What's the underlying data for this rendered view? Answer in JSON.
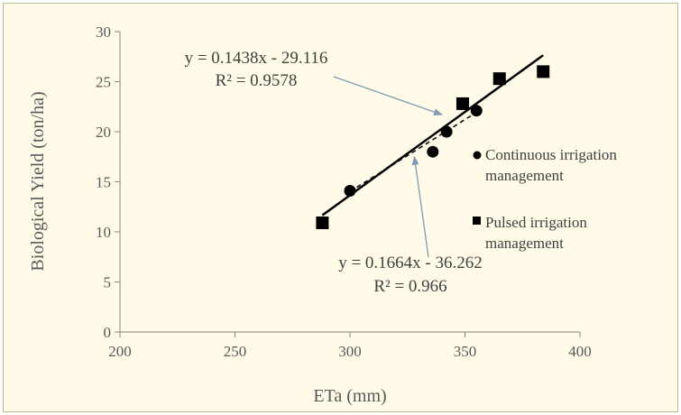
{
  "chart_data": {
    "type": "scatter",
    "xlabel": "ETa (mm)",
    "ylabel": "Biological  Yield (ton/ha)",
    "xlim": [
      200,
      400
    ],
    "ylim": [
      0,
      30
    ],
    "xticks": [
      200,
      250,
      300,
      350,
      400
    ],
    "yticks": [
      0,
      5,
      10,
      15,
      20,
      25,
      30
    ],
    "grid": false,
    "legend_position": "right",
    "series": [
      {
        "name": "Continuous irrigation management",
        "marker": "circle",
        "color": "#000000",
        "x": [
          300,
          336,
          342,
          355
        ],
        "y": [
          14.1,
          18.0,
          20.0,
          22.1
        ],
        "trendline": {
          "equation": "y = 0.1438x - 29.116",
          "r2": "R² = 0.9578",
          "slope": 0.1438,
          "intercept": -29.116,
          "style": "dashed"
        }
      },
      {
        "name": "Pulsed irrigation management",
        "marker": "square",
        "color": "#000000",
        "x": [
          288,
          349,
          365,
          384
        ],
        "y": [
          10.9,
          22.8,
          25.3,
          26.0
        ],
        "trendline": {
          "equation": "y = 0.1664x - 36.262",
          "r2": "R² = 0.966",
          "slope": 0.1664,
          "intercept": -36.262,
          "style": "solid"
        }
      }
    ],
    "annotations": [
      {
        "text_series": 0,
        "arrow_target": [
          340,
          21.7
        ]
      },
      {
        "text_series": 1,
        "arrow_target": [
          328,
          17.5
        ]
      }
    ]
  }
}
